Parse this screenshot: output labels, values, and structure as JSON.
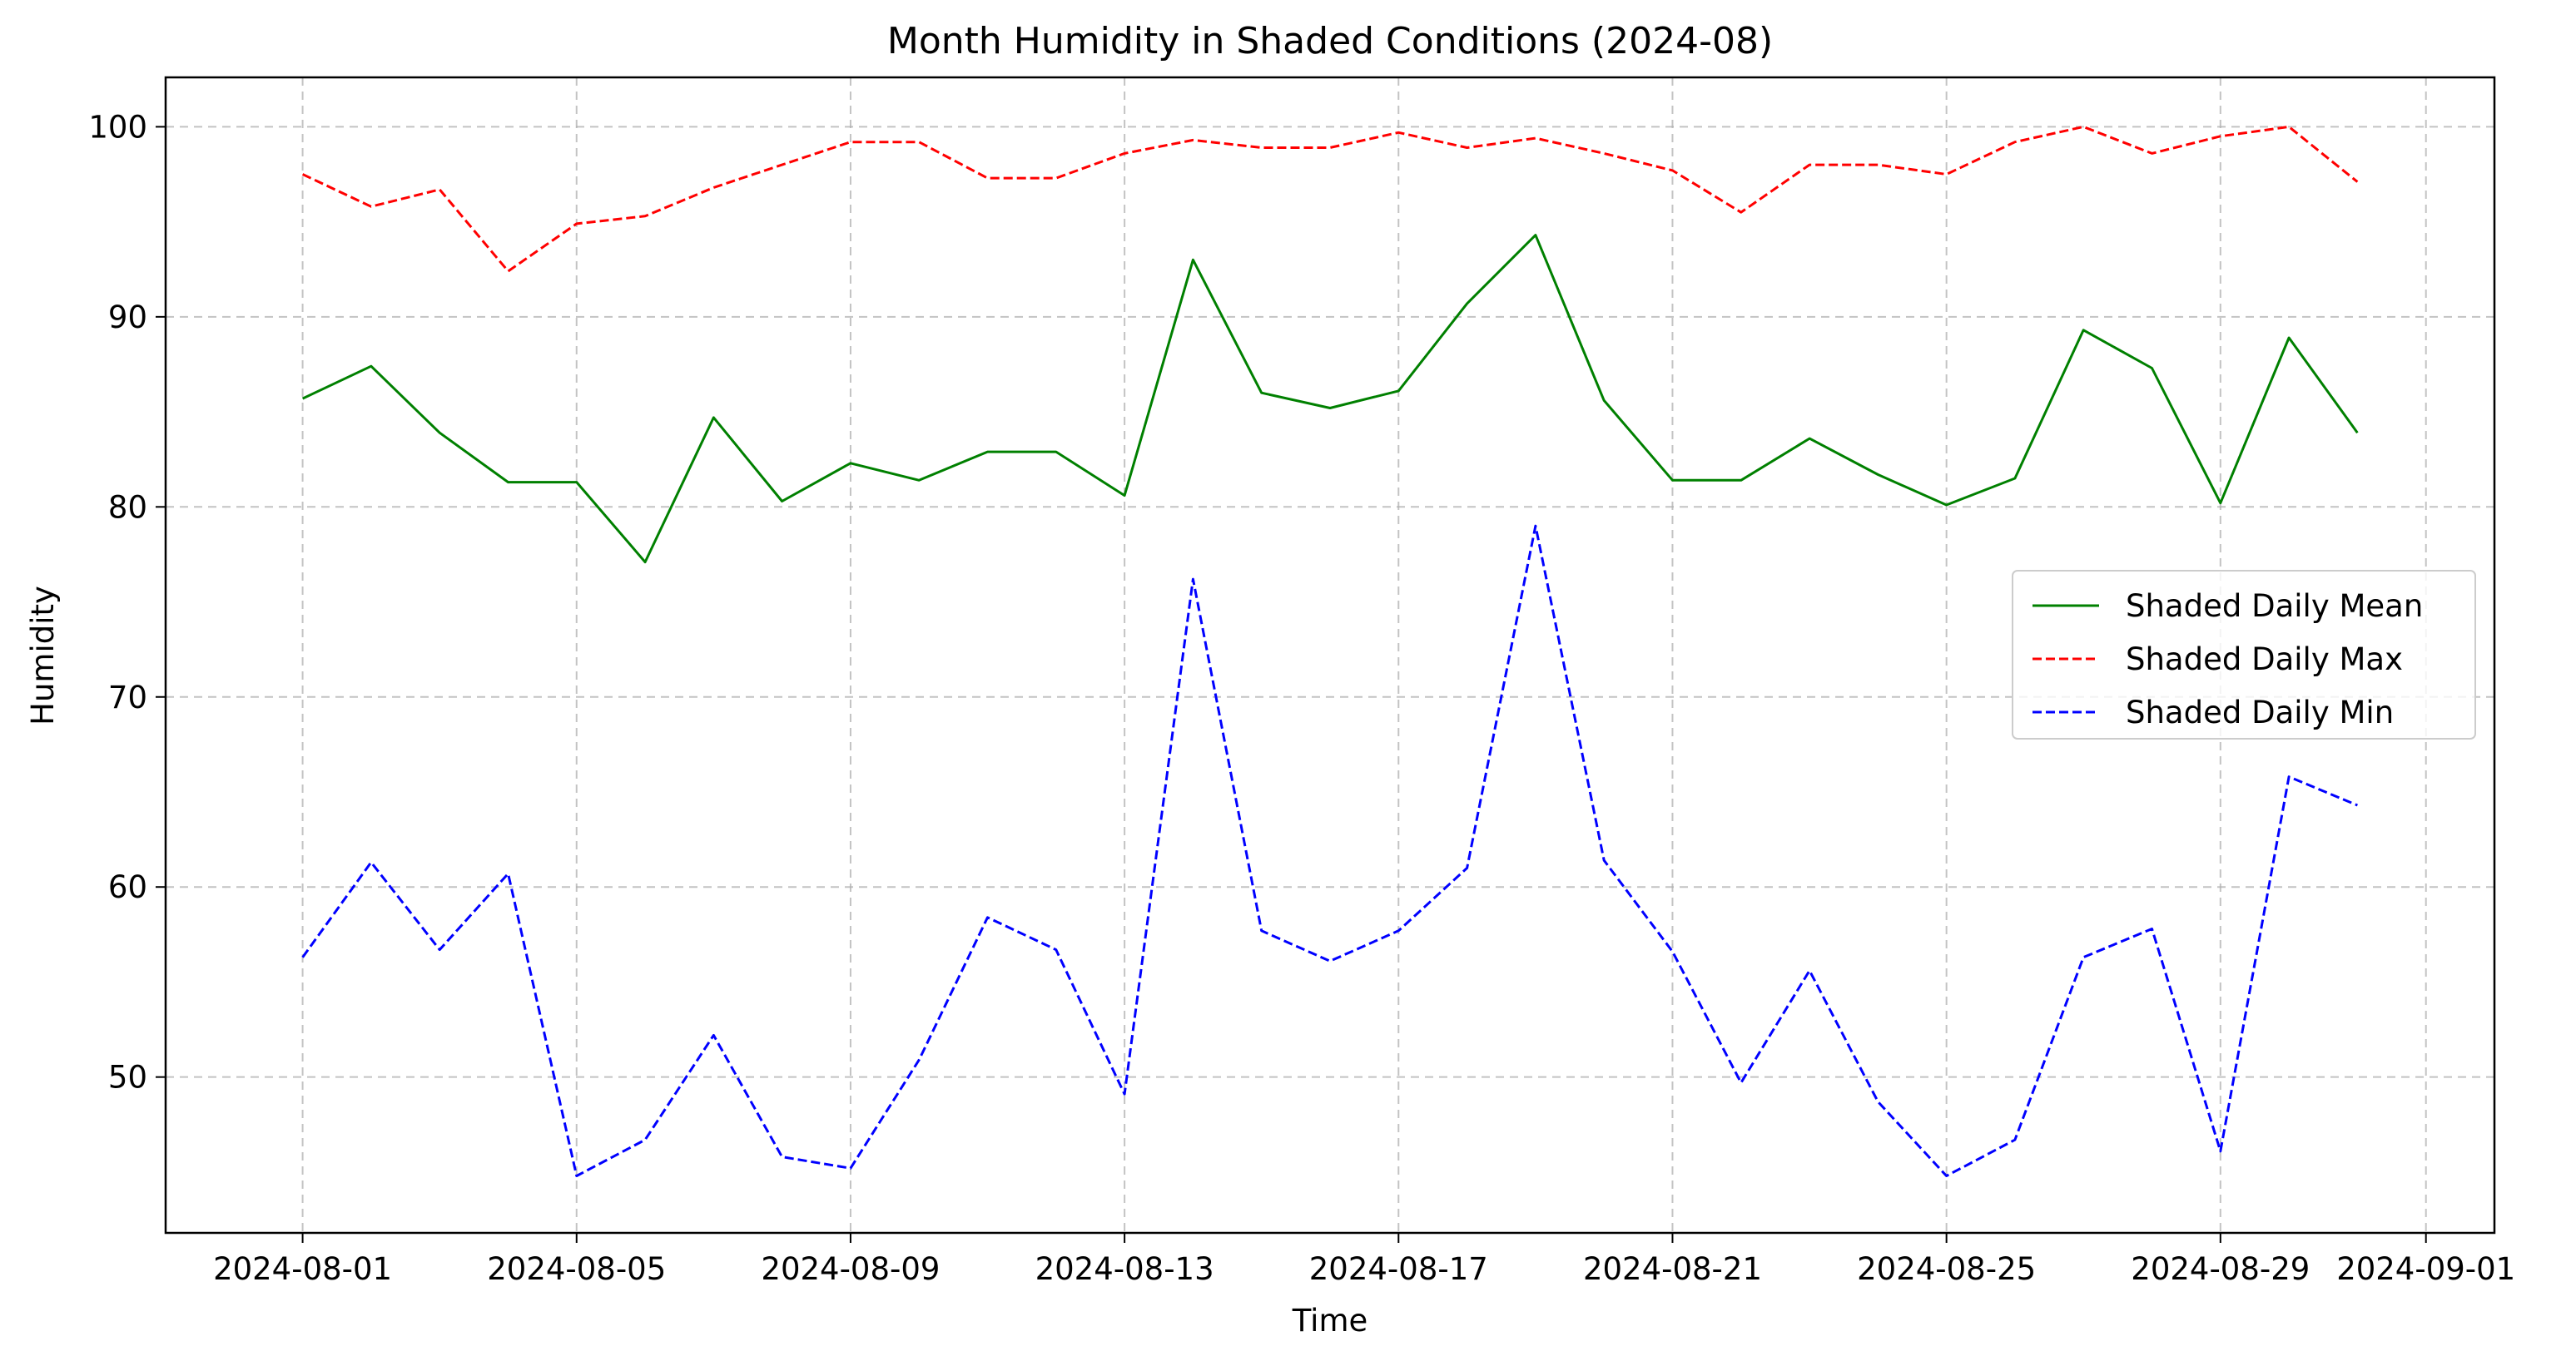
{
  "chart_data": {
    "type": "line",
    "title": "Month Humidity in Shaded Conditions (2024-08)",
    "xlabel": "Time",
    "ylabel": "Humidity",
    "x_range": [
      "2024-07-30",
      "2024-09-02"
    ],
    "ylim": [
      41.8,
      102.6
    ],
    "grid": true,
    "legend_position": "center-right",
    "x_ticks": [
      "2024-08-01",
      "2024-08-05",
      "2024-08-09",
      "2024-08-13",
      "2024-08-17",
      "2024-08-21",
      "2024-08-25",
      "2024-08-29",
      "2024-09-01"
    ],
    "y_ticks": [
      50,
      60,
      70,
      80,
      90,
      100
    ],
    "x": [
      "2024-08-01",
      "2024-08-02",
      "2024-08-03",
      "2024-08-04",
      "2024-08-05",
      "2024-08-06",
      "2024-08-07",
      "2024-08-08",
      "2024-08-09",
      "2024-08-10",
      "2024-08-11",
      "2024-08-12",
      "2024-08-13",
      "2024-08-14",
      "2024-08-15",
      "2024-08-16",
      "2024-08-17",
      "2024-08-18",
      "2024-08-19",
      "2024-08-20",
      "2024-08-21",
      "2024-08-22",
      "2024-08-23",
      "2024-08-24",
      "2024-08-25",
      "2024-08-26",
      "2024-08-27",
      "2024-08-28",
      "2024-08-29",
      "2024-08-30",
      "2024-08-31"
    ],
    "series": [
      {
        "name": "Shaded Daily Mean",
        "color": "#008000",
        "style": "solid",
        "values": [
          85.7,
          87.4,
          83.9,
          81.3,
          81.3,
          77.1,
          84.7,
          80.3,
          82.3,
          81.4,
          82.9,
          82.9,
          80.6,
          93.0,
          86.0,
          85.2,
          86.1,
          90.7,
          94.3,
          85.6,
          81.4,
          81.4,
          83.6,
          81.7,
          80.1,
          81.5,
          89.3,
          87.3,
          80.2,
          88.9,
          83.9
        ]
      },
      {
        "name": "Shaded Daily Max",
        "color": "#ff0000",
        "style": "dashed",
        "values": [
          97.5,
          95.8,
          96.7,
          92.4,
          94.9,
          95.3,
          96.8,
          98.0,
          99.2,
          99.2,
          97.3,
          97.3,
          98.6,
          99.3,
          98.9,
          98.9,
          99.7,
          98.9,
          99.4,
          98.6,
          97.7,
          95.5,
          98.0,
          98.0,
          97.5,
          99.2,
          100.0,
          98.6,
          99.5,
          100.0,
          97.1
        ]
      },
      {
        "name": "Shaded Daily Min",
        "color": "#0000ff",
        "style": "dashed",
        "values": [
          56.3,
          61.3,
          56.7,
          60.7,
          44.8,
          46.7,
          52.2,
          45.8,
          45.2,
          50.9,
          58.4,
          56.7,
          49.1,
          76.2,
          57.7,
          56.1,
          57.7,
          61.0,
          79.0,
          61.4,
          56.6,
          49.7,
          55.6,
          48.7,
          44.8,
          46.7,
          56.3,
          57.8,
          46.1,
          65.8,
          64.3
        ]
      }
    ]
  }
}
